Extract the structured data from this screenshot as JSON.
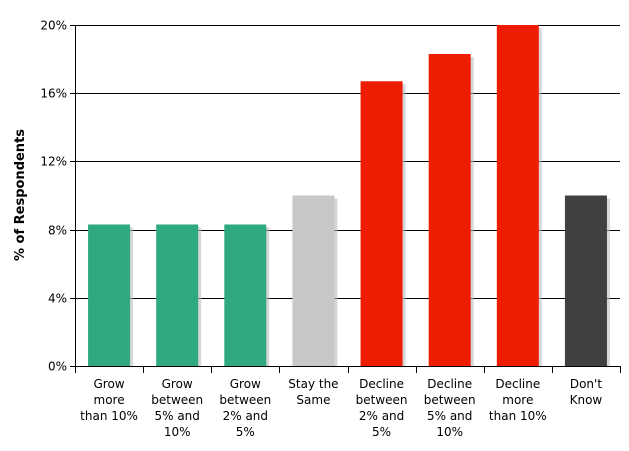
{
  "chart_data": {
    "type": "bar",
    "title": "",
    "xlabel": "",
    "ylabel": "% of Respondents",
    "ylim": [
      0,
      20
    ],
    "yticks": [
      "0%",
      "4%",
      "8%",
      "12%",
      "16%",
      "20%"
    ],
    "grid": true,
    "categories": [
      [
        "Grow",
        "more",
        "than 10%"
      ],
      [
        "Grow",
        "between",
        "5% and",
        "10%"
      ],
      [
        "Grow",
        "between",
        "2% and",
        "5%"
      ],
      [
        "Stay the",
        "Same"
      ],
      [
        "Decline",
        "between",
        "2% and",
        "5%"
      ],
      [
        "Decline",
        "between",
        "5% and",
        "10%"
      ],
      [
        "Decline",
        "more",
        "than 10%"
      ],
      [
        "Don't",
        "Know"
      ]
    ],
    "values": [
      8.3,
      8.3,
      8.3,
      10.0,
      16.7,
      18.3,
      20.0,
      10.0
    ],
    "colors": [
      "#2eaa7e",
      "#2eaa7e",
      "#2eaa7e",
      "#c8c8c8",
      "#ee1c00",
      "#ee1c00",
      "#ee1c00",
      "#404040"
    ]
  }
}
